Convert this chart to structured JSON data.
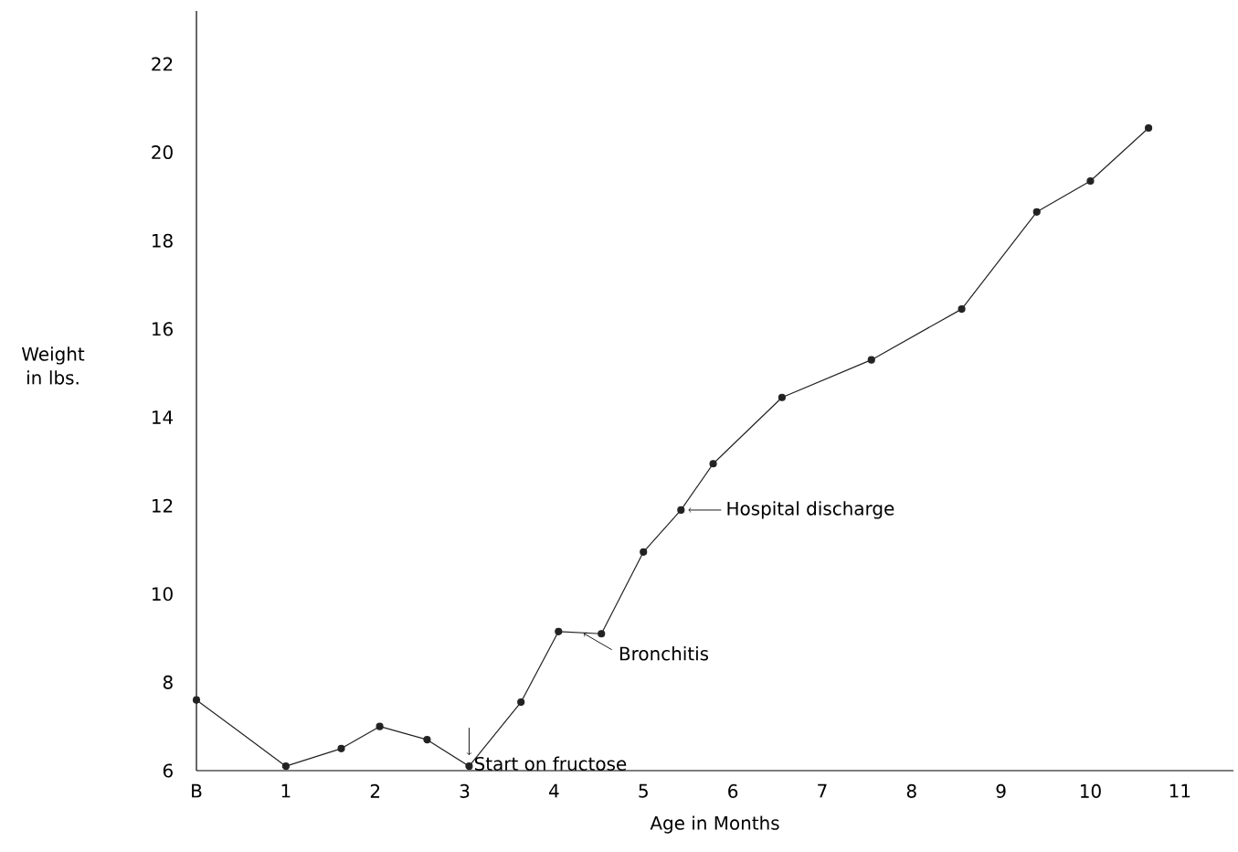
{
  "chart_data": {
    "type": "line",
    "xlabel": "Age in Months",
    "ylabel": "Weight in lbs.",
    "x": [
      0,
      1,
      1.62,
      2.05,
      2.58,
      3.05,
      3.63,
      4.05,
      4.53,
      5.0,
      5.42,
      5.78,
      6.55,
      7.55,
      8.56,
      9.4,
      10.0,
      10.65
    ],
    "values": [
      7.6,
      6.1,
      6.5,
      7.0,
      6.7,
      6.1,
      7.55,
      9.15,
      9.1,
      10.95,
      11.9,
      12.95,
      14.45,
      15.3,
      16.45,
      18.65,
      19.35,
      20.55
    ],
    "color": "#222222",
    "marker": "circle",
    "line_style": "solid",
    "xlim": [
      0,
      11.6
    ],
    "ylim": [
      6,
      23.2
    ],
    "xticks": [
      {
        "value": 0,
        "label": "B"
      },
      1,
      2,
      3,
      4,
      5,
      6,
      7,
      8,
      9,
      10,
      11
    ],
    "yticks": [
      6,
      8,
      10,
      12,
      14,
      16,
      18,
      20,
      22
    ],
    "annotations": [
      {
        "text": "Start on fructose",
        "x": 3.05,
        "y": 6.1
      },
      {
        "text": "Bronchitis",
        "x": 4.3,
        "y": 9.15
      },
      {
        "text": "Hospital discharge",
        "x": 5.42,
        "y": 11.9
      }
    ]
  }
}
